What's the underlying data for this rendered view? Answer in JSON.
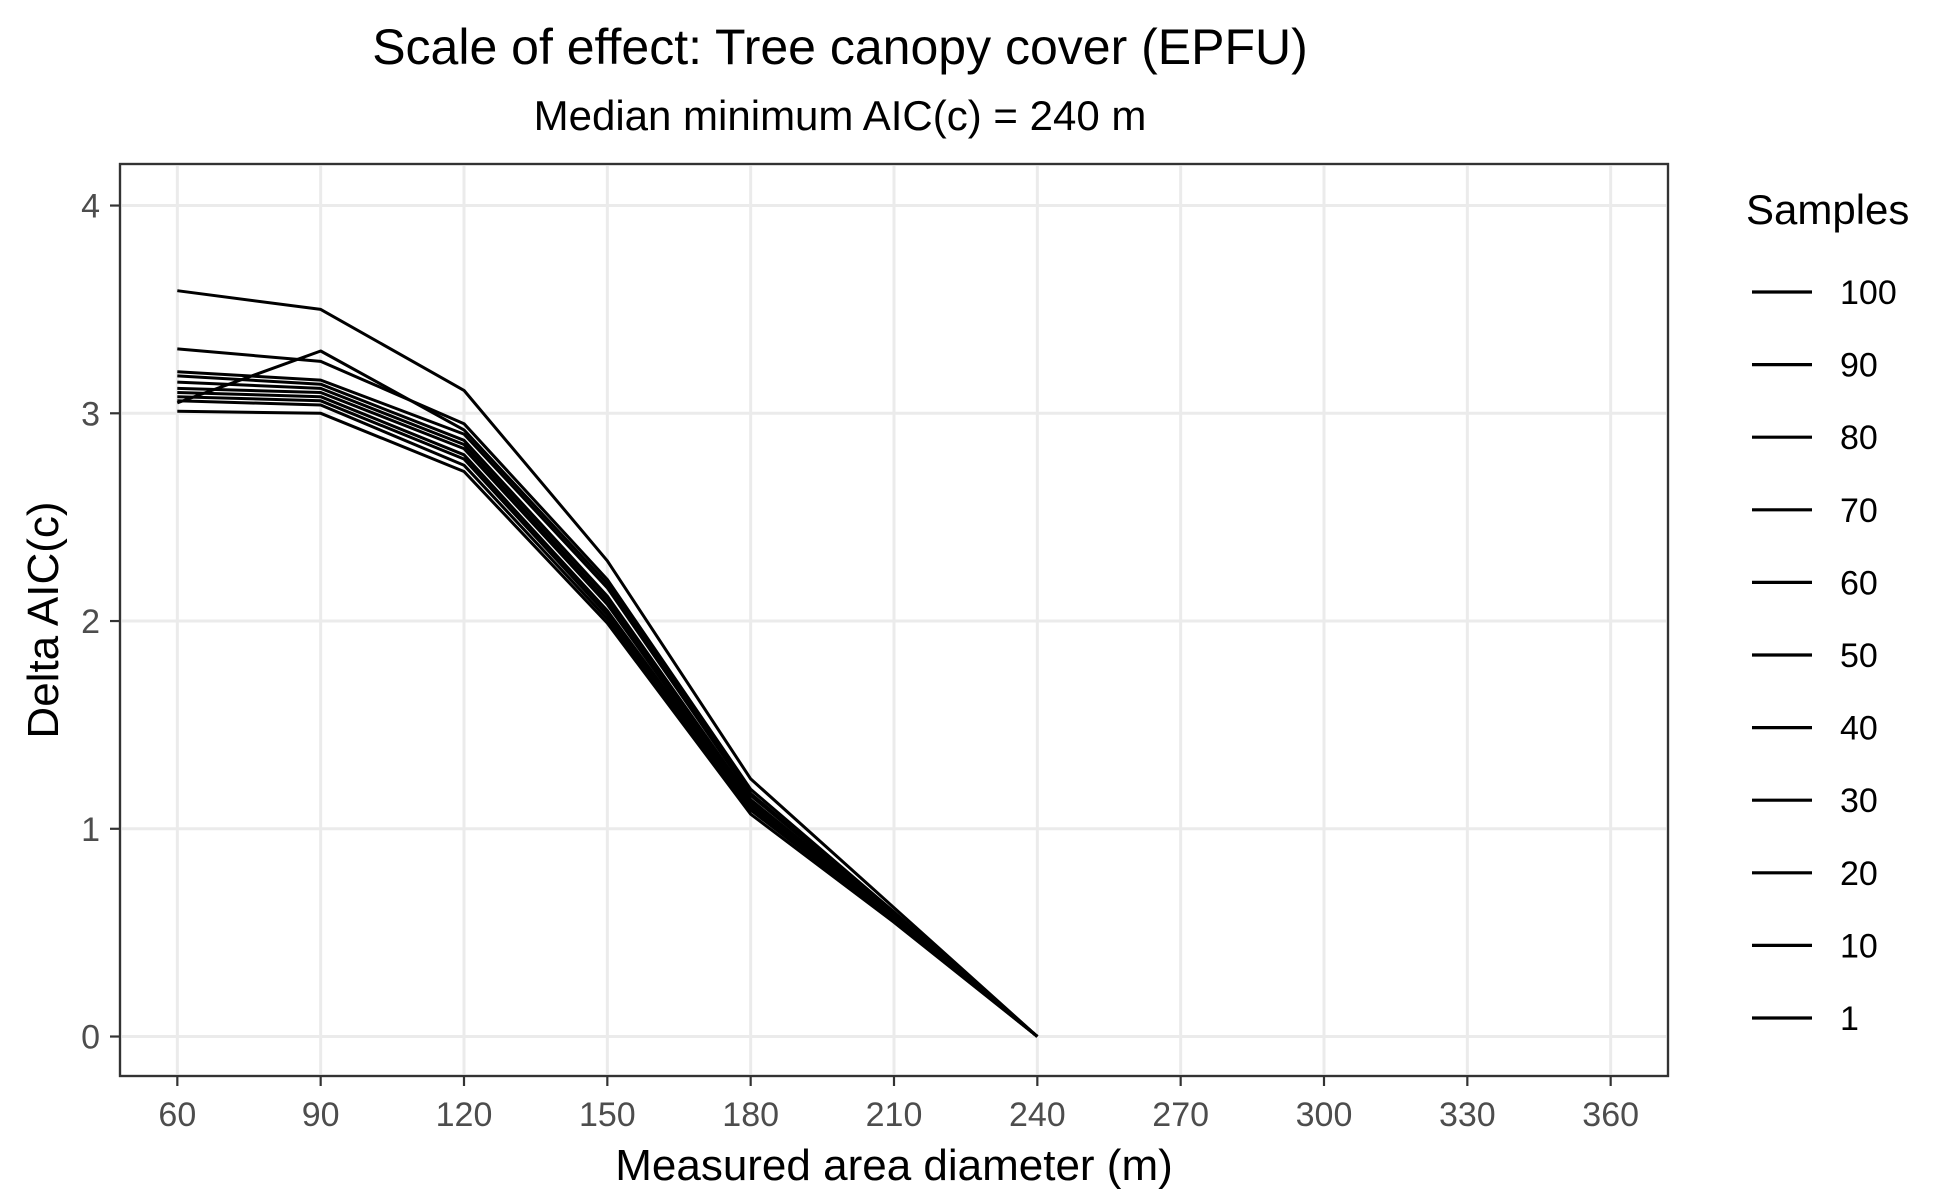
{
  "chart_data": {
    "type": "line",
    "title": "Scale of effect: Tree canopy cover (EPFU)",
    "subtitle": "Median minimum AIC(c) = 240 m",
    "xlabel": "Measured area diameter (m)",
    "ylabel": "Delta AIC(c)",
    "xlim": [
      48,
      372
    ],
    "ylim": [
      -0.19,
      4.2
    ],
    "x_ticks": [
      60,
      90,
      120,
      150,
      180,
      210,
      240,
      270,
      300,
      330,
      360
    ],
    "y_ticks": [
      0,
      1,
      2,
      3,
      4
    ],
    "grid": true,
    "legend": {
      "title": "Samples",
      "placement": "right"
    },
    "x": [
      60,
      90,
      120,
      150,
      180,
      210,
      240
    ],
    "series": [
      {
        "name": "100",
        "values": [
          3.59,
          3.5,
          3.11,
          2.29,
          1.24,
          0.62,
          0.0
        ]
      },
      {
        "name": "90",
        "values": [
          3.31,
          3.25,
          2.95,
          2.2,
          1.19,
          0.6,
          0.0
        ]
      },
      {
        "name": "80",
        "values": [
          3.05,
          3.3,
          2.92,
          2.18,
          1.17,
          0.59,
          0.0
        ]
      },
      {
        "name": "70",
        "values": [
          3.2,
          3.16,
          2.9,
          2.16,
          1.16,
          0.59,
          0.0
        ]
      },
      {
        "name": "60",
        "values": [
          3.18,
          3.14,
          2.87,
          2.12,
          1.14,
          0.58,
          0.0
        ]
      },
      {
        "name": "50",
        "values": [
          3.15,
          3.12,
          2.85,
          2.1,
          1.13,
          0.58,
          0.0
        ]
      },
      {
        "name": "40",
        "values": [
          3.12,
          3.1,
          2.83,
          2.08,
          1.12,
          0.57,
          0.0
        ]
      },
      {
        "name": "30",
        "values": [
          3.1,
          3.08,
          2.8,
          2.05,
          1.11,
          0.57,
          0.0
        ]
      },
      {
        "name": "20",
        "values": [
          3.08,
          3.06,
          2.78,
          2.03,
          1.1,
          0.56,
          0.0
        ]
      },
      {
        "name": "10",
        "values": [
          3.06,
          3.04,
          2.75,
          2.01,
          1.09,
          0.56,
          0.0
        ]
      },
      {
        "name": "1",
        "values": [
          3.01,
          3.0,
          2.72,
          1.99,
          1.07,
          0.55,
          0.0
        ]
      }
    ]
  }
}
